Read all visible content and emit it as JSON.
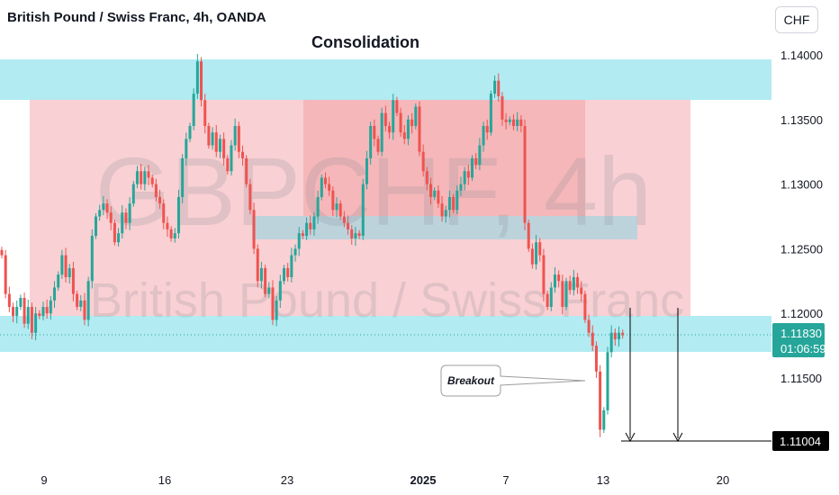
{
  "header": {
    "symbol_title": "British Pound / Swiss Franc, 4h, OANDA",
    "currency_button": "CHF"
  },
  "watermark": {
    "ticker": "GBPCHF, 4h",
    "name": "British Pound / Swiss Franc"
  },
  "colors": {
    "up": "#26a69a",
    "down": "#ef5350",
    "zone_cyan": "#b2ebf2",
    "range_pink": "#f8c8cb",
    "range_dark": "#f0a8ab",
    "mid_band": "#b9d3dc",
    "price_badge": "#26a69a",
    "target_badge": "#000000"
  },
  "chart_data": {
    "type": "candlestick",
    "title": "Consolidation",
    "y_axis": {
      "ticks": [
        "1.14000",
        "1.13500",
        "1.13000",
        "1.12500",
        "1.12000",
        "1.11500"
      ],
      "range": [
        1.1085,
        1.1412
      ]
    },
    "x_axis": {
      "ticks": [
        "9",
        "16",
        "23",
        "2025",
        "7",
        "13",
        "20"
      ],
      "bold_tick": "2025"
    },
    "current_price": {
      "value": "1.11830",
      "countdown": "01:06:59"
    },
    "target_price": "1.11004",
    "annotations": {
      "breakout_label": "Breakout"
    },
    "zones": {
      "resistance": [
        1.1365,
        1.1397
      ],
      "support": [
        1.1169,
        1.1196
      ],
      "mid": [
        1.1256,
        1.1274
      ],
      "range": [
        1.1166,
        1.1365
      ]
    },
    "closes": [
      1.1245,
      1.1215,
      1.1205,
      1.1198,
      1.1205,
      1.1212,
      1.1192,
      1.1205,
      1.1185,
      1.12,
      1.1198,
      1.1205,
      1.12,
      1.121,
      1.122,
      1.123,
      1.1245,
      1.1228,
      1.1235,
      1.1215,
      1.1205,
      1.121,
      1.1195,
      1.1225,
      1.126,
      1.1275,
      1.128,
      1.1285,
      1.1278,
      1.127,
      1.1255,
      1.1262,
      1.1278,
      1.127,
      1.1285,
      1.13,
      1.131,
      1.13,
      1.131,
      1.1305,
      1.13,
      1.129,
      1.1285,
      1.127,
      1.1265,
      1.1258,
      1.1262,
      1.129,
      1.132,
      1.1335,
      1.1345,
      1.137,
      1.1395,
      1.1365,
      1.1345,
      1.133,
      1.134,
      1.1325,
      1.1335,
      1.132,
      1.131,
      1.133,
      1.1345,
      1.1325,
      1.132,
      1.13,
      1.128,
      1.125,
      1.1225,
      1.1235,
      1.1215,
      1.122,
      1.1195,
      1.121,
      1.1225,
      1.1235,
      1.1228,
      1.1245,
      1.125,
      1.1262,
      1.126,
      1.127,
      1.1265,
      1.1275,
      1.129,
      1.1305,
      1.13,
      1.1295,
      1.128,
      1.1285,
      1.1275,
      1.127,
      1.1265,
      1.1258,
      1.1262,
      1.126,
      1.13,
      1.132,
      1.1345,
      1.1335,
      1.1325,
      1.1355,
      1.1345,
      1.134,
      1.1365,
      1.1355,
      1.134,
      1.1335,
      1.135,
      1.1345,
      1.136,
      1.1325,
      1.131,
      1.13,
      1.129,
      1.1295,
      1.1285,
      1.1275,
      1.128,
      1.129,
      1.128,
      1.1295,
      1.13,
      1.131,
      1.1305,
      1.132,
      1.1315,
      1.133,
      1.1345,
      1.134,
      1.137,
      1.138,
      1.1368,
      1.135,
      1.1348,
      1.135,
      1.1345,
      1.135,
      1.1345,
      1.127,
      1.125,
      1.1238,
      1.1255,
      1.1245,
      1.1215,
      1.1205,
      1.122,
      1.123,
      1.1225,
      1.1205,
      1.1225,
      1.1218,
      1.1228,
      1.122,
      1.1215,
      1.1195,
      1.1185,
      1.1175,
      1.1155,
      1.111,
      1.1125,
      1.117,
      1.1185,
      1.118,
      1.1185,
      1.1183
    ]
  }
}
